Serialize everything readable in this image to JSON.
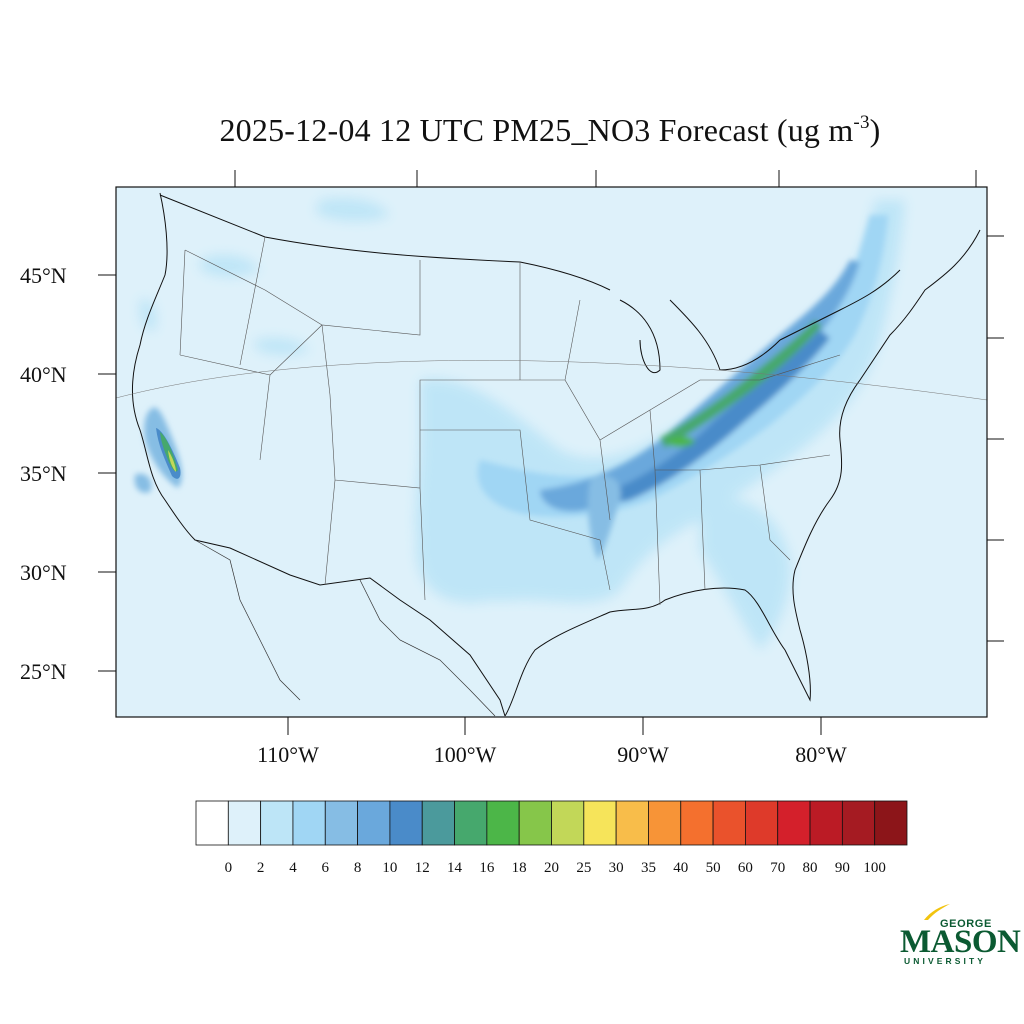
{
  "title": {
    "main": "2025-12-04 12 UTC PM25_NO3 Forecast (ug m",
    "sup": "-3",
    "close": ")"
  },
  "map": {
    "lat_labels": [
      "45°N",
      "40°N",
      "35°N",
      "30°N",
      "25°N"
    ],
    "lon_labels": [
      "110°W",
      "100°W",
      "90°W",
      "80°W"
    ],
    "background_color": "#def1fa"
  },
  "colorbar": {
    "labels": [
      "0",
      "2",
      "4",
      "6",
      "8",
      "10",
      "12",
      "14",
      "16",
      "18",
      "20",
      "25",
      "30",
      "35",
      "40",
      "50",
      "60",
      "70",
      "80",
      "90",
      "100"
    ],
    "colors": [
      "#ffffff",
      "#def1fa",
      "#bde5f7",
      "#a0d6f4",
      "#86bde4",
      "#6aa8dc",
      "#4a8bc9",
      "#4b9a9c",
      "#46a86d",
      "#4cb648",
      "#86c64a",
      "#c2d758",
      "#f6e45a",
      "#f8bd4a",
      "#f79437",
      "#f4702e",
      "#ea522c",
      "#de3a2a",
      "#d4202b",
      "#bb1b25",
      "#a51b22",
      "#8c1519"
    ]
  },
  "logo": {
    "line1": "GEORGE",
    "line2": "MASON",
    "line3": "UNIVERSITY",
    "color": "#0b5a32",
    "accent": "#f2c40f"
  }
}
